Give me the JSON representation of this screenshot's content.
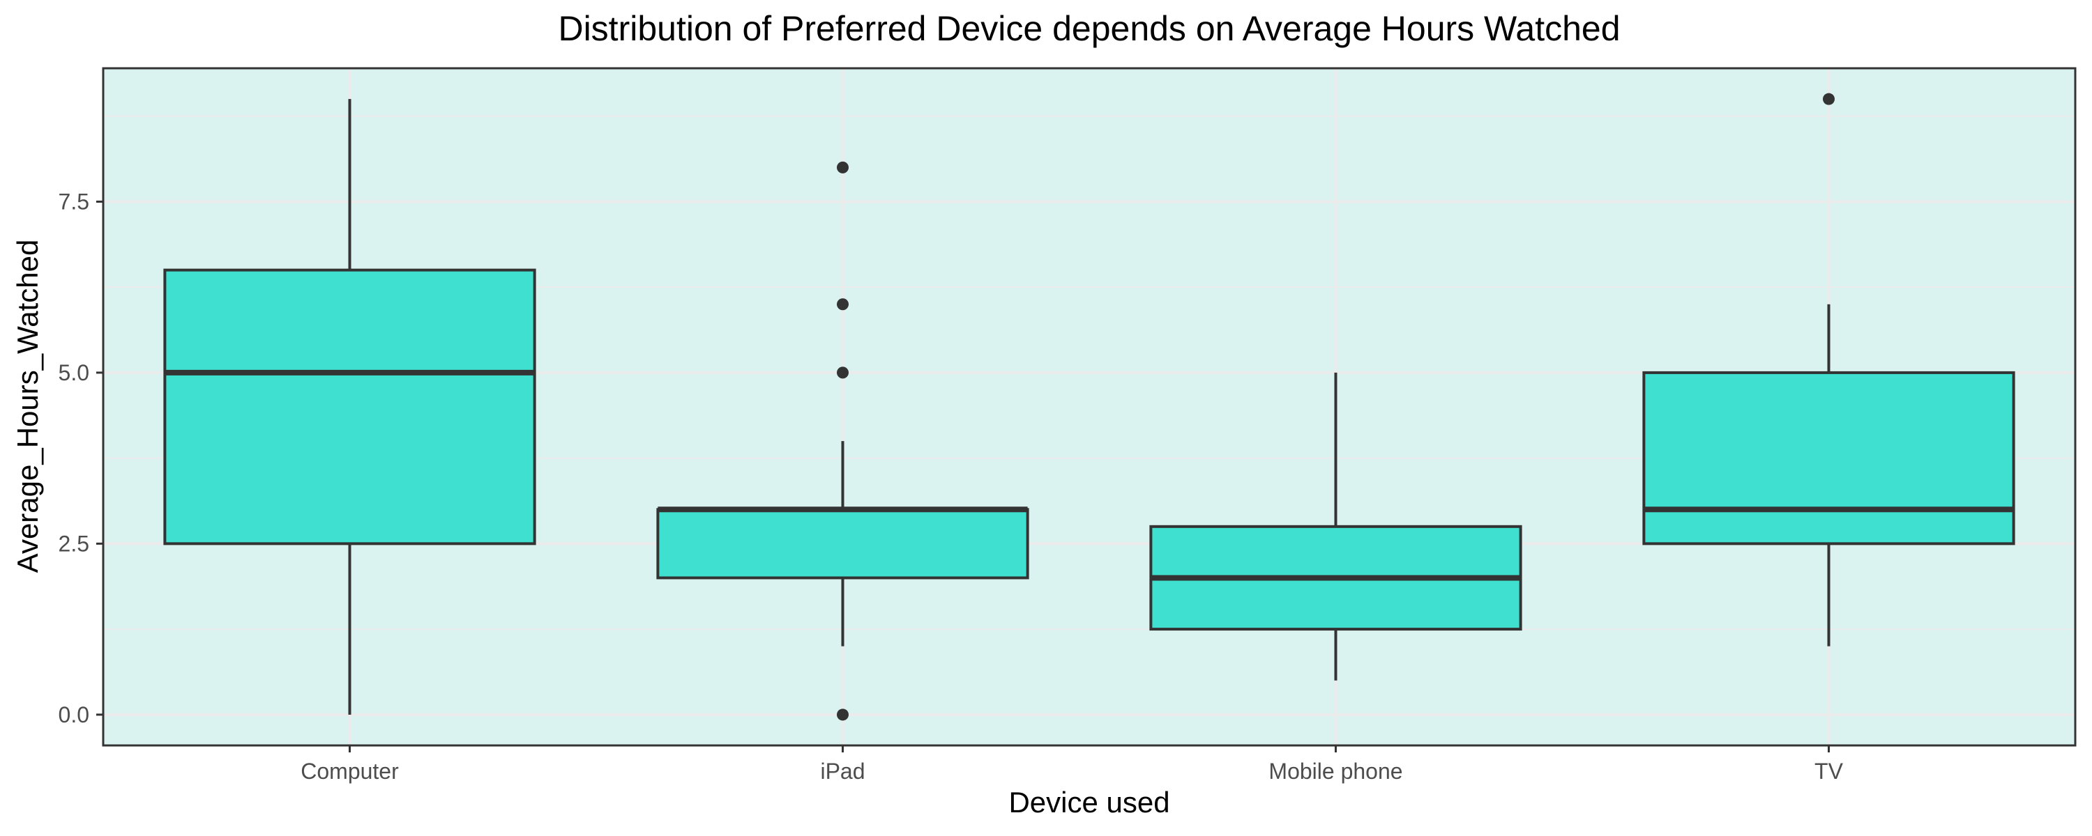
{
  "chart_data": {
    "type": "box",
    "title": "Distribution of Preferred Device depends on Average Hours Watched",
    "xlabel": "Device used",
    "ylabel": "Average_Hours_Watched",
    "categories": [
      "Computer",
      "iPad",
      "Mobile phone",
      "TV"
    ],
    "boxes": [
      {
        "category": "Computer",
        "whisker_low": 0,
        "q1": 2.5,
        "median": 5,
        "q3": 6.5,
        "whisker_high": 9,
        "outliers": []
      },
      {
        "category": "iPad",
        "whisker_low": 1,
        "q1": 2,
        "median": 3,
        "q3": 3,
        "whisker_high": 4,
        "outliers": [
          0,
          5,
          6,
          8
        ]
      },
      {
        "category": "Mobile phone",
        "whisker_low": 0.5,
        "q1": 1.25,
        "median": 2,
        "q3": 2.75,
        "whisker_high": 5,
        "outliers": []
      },
      {
        "category": "TV",
        "whisker_low": 1,
        "q1": 2.5,
        "median": 3,
        "q3": 5,
        "whisker_high": 6,
        "outliers": [
          9
        ]
      }
    ],
    "yticks": [
      0,
      2.5,
      5,
      7.5
    ],
    "ytick_labels": [
      "0.0",
      "2.5",
      "5.0",
      "7.5"
    ],
    "ylim": [
      -0.45,
      9.45
    ],
    "grid": true,
    "colors": {
      "box_fill": "#40E0D0",
      "panel_background": "#DBF3F0",
      "grid": "#EBEBEB",
      "outline": "#333333"
    }
  }
}
